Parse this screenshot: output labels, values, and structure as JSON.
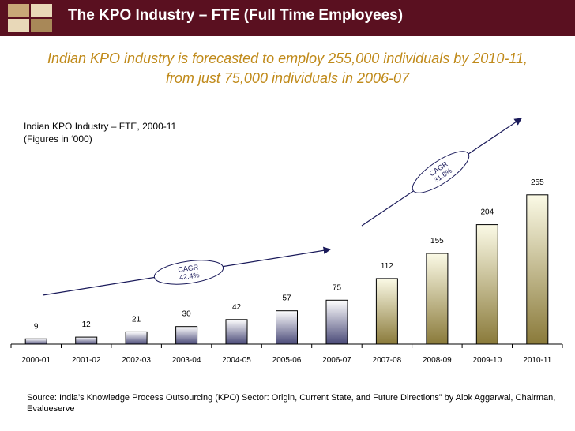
{
  "header": {
    "title": "The KPO Industry – FTE (Full Time Employees)",
    "background": "#5a1020"
  },
  "subtitle": {
    "line1": "Indian KPO industry is forecasted to employ 255,000 individuals by 2010-11,",
    "line2": "from just 75,000 individuals in 2006-07"
  },
  "chart_title": {
    "line1": "Indian KPO Industry – FTE, 2000-11",
    "line2": "(Figures in ‘000)"
  },
  "chart_data": {
    "type": "bar",
    "categories": [
      "2000-01",
      "2001-02",
      "2002-03",
      "2003-04",
      "2004-05",
      "2005-06",
      "2006-07",
      "2007-08",
      "2008-09",
      "2009-10",
      "2010-11"
    ],
    "values": [
      9,
      12,
      21,
      30,
      42,
      57,
      75,
      112,
      155,
      204,
      255
    ],
    "ylim": [
      0,
      300
    ],
    "grid": false,
    "bar_colors": {
      "early": "#4a4a78",
      "late": "#8a7a3a"
    },
    "annotations": [
      {
        "label_line1": "CAGR",
        "label_line2": "42.4%",
        "from": "2000-01",
        "to": "2006-07"
      },
      {
        "label_line1": "CAGR",
        "label_line2": "31.6%",
        "from": "2007-08",
        "to": "2010-11"
      }
    ]
  },
  "source": "Source: India’s Knowledge Process Outsourcing (KPO) Sector: Origin, Current State, and Future Directions” by Alok Aggarwal, Chairman, Evalueserve"
}
